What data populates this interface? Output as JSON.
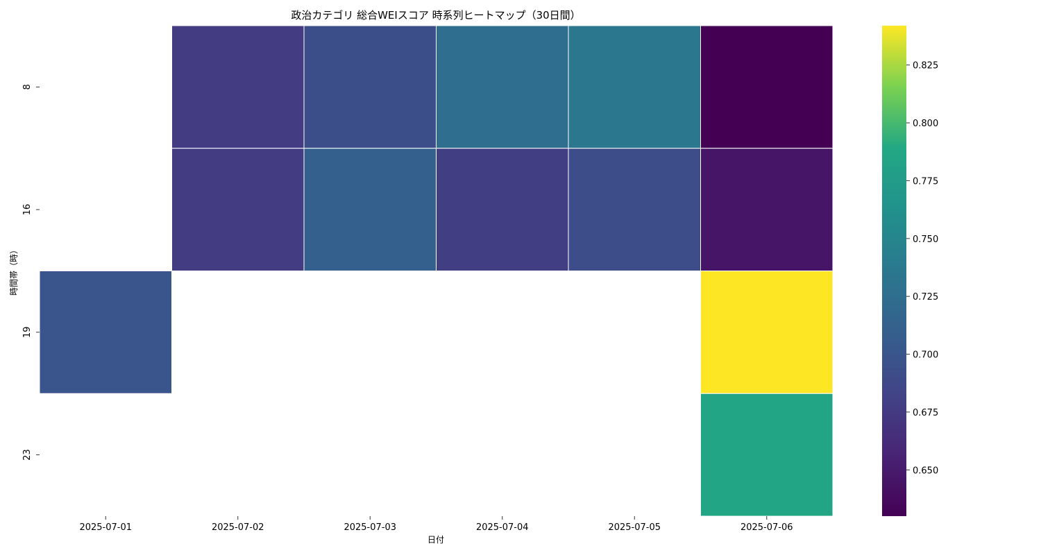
{
  "chart_data": {
    "type": "heatmap",
    "title": "政治カテゴリ 総合WEIスコア 時系列ヒートマップ（30日間）",
    "xlabel": "日付",
    "ylabel": "時間帯（時）",
    "x_categories": [
      "2025-07-01",
      "2025-07-02",
      "2025-07-03",
      "2025-07-04",
      "2025-07-05",
      "2025-07-06"
    ],
    "y_categories": [
      "8",
      "16",
      "19",
      "23"
    ],
    "values": [
      [
        null,
        0.676,
        0.693,
        0.725,
        0.735,
        0.63
      ],
      [
        null,
        0.676,
        0.711,
        0.678,
        0.692,
        0.645
      ],
      [
        0.7,
        null,
        null,
        null,
        null,
        0.842
      ],
      [
        null,
        null,
        null,
        null,
        null,
        0.785
      ]
    ],
    "colormap": "viridis",
    "vmin": 0.63,
    "vmax": 0.842,
    "colorbar_ticks": [
      "0.650",
      "0.675",
      "0.700",
      "0.725",
      "0.750",
      "0.775",
      "0.800",
      "0.825"
    ],
    "missing_color": "#ffffff"
  }
}
